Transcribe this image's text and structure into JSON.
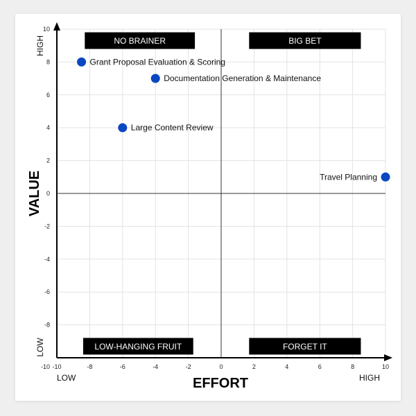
{
  "chart_data": {
    "type": "scatter",
    "title": "",
    "xlabel": "EFFORT",
    "ylabel": "VALUE",
    "xlim": [
      -10,
      10
    ],
    "ylim": [
      -10,
      10
    ],
    "x_ticks": [
      -10,
      -8,
      -6,
      -4,
      -2,
      0,
      2,
      4,
      6,
      8,
      10
    ],
    "y_ticks": [
      -8,
      -6,
      -4,
      -2,
      0,
      2,
      4,
      6,
      8,
      10
    ],
    "x_low_label": "LOW",
    "x_high_label": "HIGH",
    "y_low_label": "LOW",
    "y_high_label": "HIGH",
    "grid": true,
    "point_color": "#0a47c2",
    "quadrant_labels": {
      "top_left": "NO BRAINER",
      "top_right": "BIG BET",
      "bottom_left": "LOW-HANGING FRUIT",
      "bottom_right": "FORGET IT"
    },
    "points": [
      {
        "label": "Grant Proposal Evaluation & Scoring",
        "x": -8.5,
        "y": 8
      },
      {
        "label": "Documentation Generation & Maintenance",
        "x": -4,
        "y": 7
      },
      {
        "label": "Large Content Review",
        "x": -6,
        "y": 4
      },
      {
        "label": "Travel Planning",
        "x": 10,
        "y": 1
      }
    ]
  }
}
